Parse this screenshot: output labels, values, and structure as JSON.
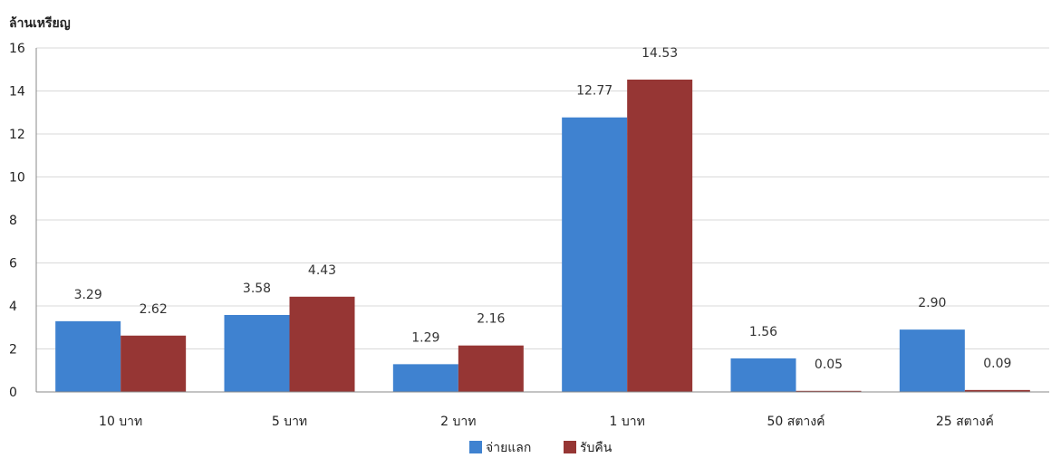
{
  "chart_data": {
    "type": "bar",
    "ylabel": "ล้านเหรียญ",
    "ylim": [
      0,
      16
    ],
    "yticks": [
      0,
      2,
      4,
      6,
      8,
      10,
      12,
      14,
      16
    ],
    "grid": true,
    "legend": "bottom-center",
    "categories": [
      "10 บาท",
      "5 บาท",
      "2 บาท",
      "1 บาท",
      "50 สตางค์",
      "25 สตางค์"
    ],
    "series": [
      {
        "name": "จ่ายแลก",
        "color": "#3f82d0",
        "values": [
          3.29,
          3.58,
          1.29,
          12.77,
          1.56,
          2.9
        ],
        "labels": [
          "3.29",
          "3.58",
          "1.29",
          "12.77",
          "1.56",
          "2.90"
        ]
      },
      {
        "name": "รับคืน",
        "color": "#963634",
        "values": [
          2.62,
          4.43,
          2.16,
          14.53,
          0.05,
          0.09
        ],
        "labels": [
          "2.62",
          "4.43",
          "2.16",
          "14.53",
          "0.05",
          "0.09"
        ]
      }
    ]
  }
}
